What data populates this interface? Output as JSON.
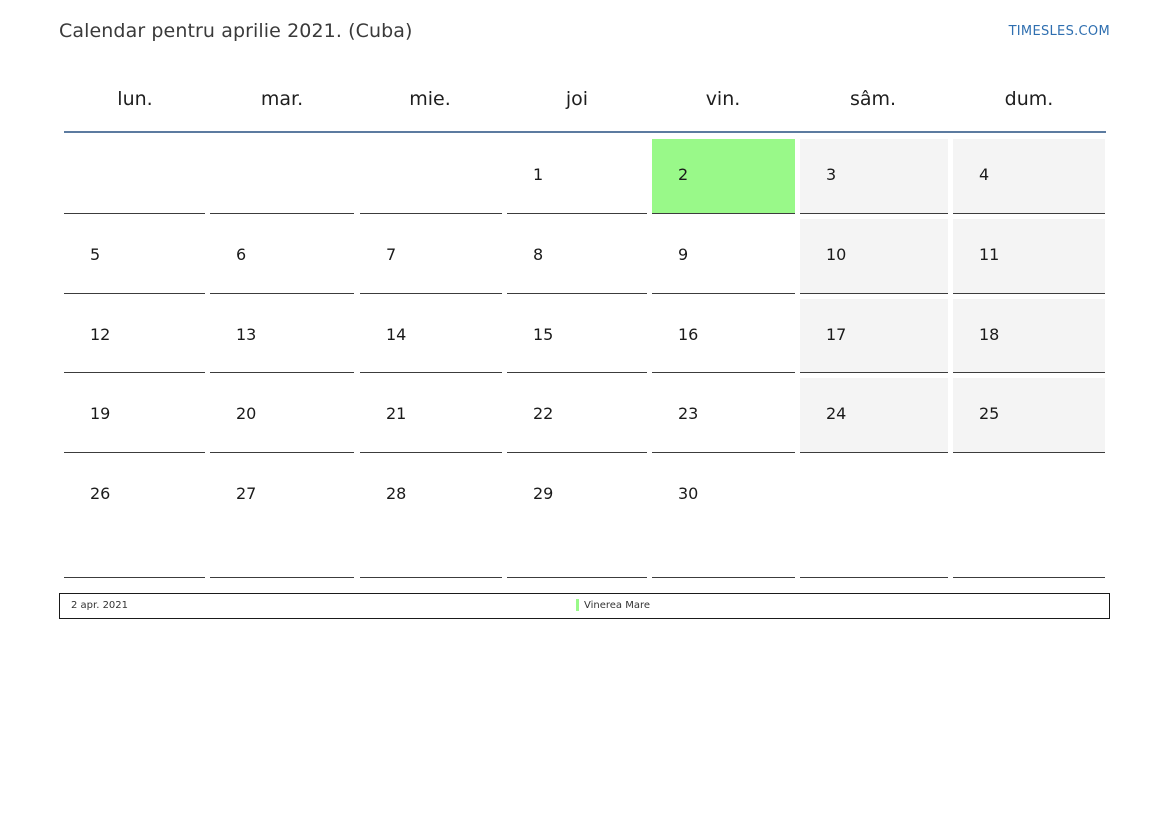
{
  "header": {
    "title": "Calendar pentru aprilie 2021. (Cuba)",
    "site_link": "TIMESLES.COM"
  },
  "weekdays": [
    "lun.",
    "mar.",
    "mie.",
    "joi",
    "vin.",
    "sâm.",
    "dum."
  ],
  "weeks": [
    [
      null,
      null,
      null,
      1,
      2,
      3,
      4
    ],
    [
      5,
      6,
      7,
      8,
      9,
      10,
      11
    ],
    [
      12,
      13,
      14,
      15,
      16,
      17,
      18
    ],
    [
      19,
      20,
      21,
      22,
      23,
      24,
      25
    ],
    [
      26,
      27,
      28,
      29,
      30,
      null,
      null
    ]
  ],
  "highlighted_days": [
    2
  ],
  "holidays": [
    {
      "date": "2 apr. 2021",
      "name": "Vinerea Mare"
    }
  ],
  "colors": {
    "holiday": "#99f989",
    "weekend": "#f4f4f4",
    "header_rule": "#5c7ba0",
    "link": "#2f6fb0"
  }
}
